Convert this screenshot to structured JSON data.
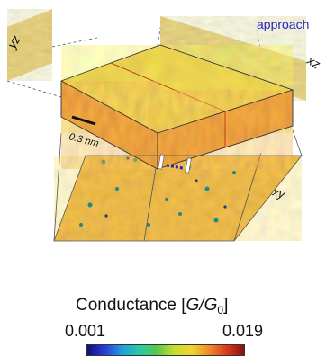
{
  "figure": {
    "annotation": "approach",
    "scale_bar": "0.3 nm",
    "planes": {
      "yz": "yz",
      "xz": "xz",
      "xy": "xy"
    }
  },
  "colorbar": {
    "title_prefix": "Conductance [",
    "title_symbol": "G/G",
    "title_subscript": "0",
    "title_suffix": "]",
    "min_label": "0.001",
    "max_label": "0.019",
    "stops": [
      "#10107a",
      "#2a3cd8",
      "#1f9fe0",
      "#27c9a8",
      "#56c84a",
      "#c6de2c",
      "#f3d431",
      "#ef8a26",
      "#d93a1c",
      "#8a1010"
    ]
  },
  "colors": {
    "approach_text": "#2424c8",
    "map_background": "#e8a537",
    "box_edge": "#333333"
  }
}
